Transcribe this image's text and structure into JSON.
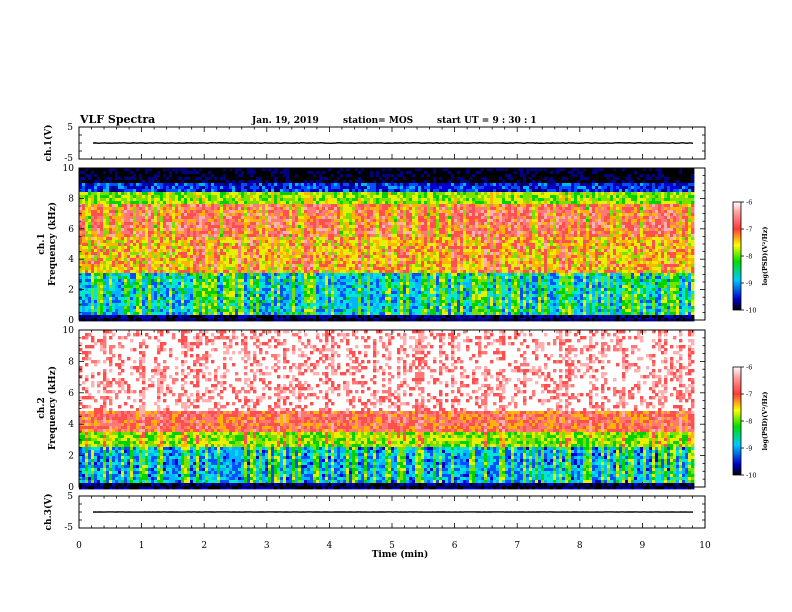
{
  "header": {
    "title": "VLF Spectra",
    "date": "Jan. 19, 2019",
    "station": "station= MOS",
    "start_time": "start  UT  =   9  : 30 : 1"
  },
  "chart_data": {
    "type": "heatmap",
    "xlabel": "Time  (min)",
    "x_ticks": [
      "0",
      "1",
      "2",
      "3",
      "4",
      "5",
      "6",
      "7",
      "8",
      "9",
      "10"
    ],
    "xlim": [
      0,
      10
    ],
    "data_end_min": 9.82,
    "panels": [
      {
        "type": "line",
        "ylabel": "ch.1(V)",
        "y_ticks": [
          "5",
          "-5"
        ],
        "ylim": [
          -5,
          5
        ],
        "trace_level": 0
      },
      {
        "type": "heatmap",
        "ylabel_line1": "ch.1",
        "ylabel_line2": "Frequency  (kHz)",
        "y_ticks": [
          "0",
          "2",
          "4",
          "6",
          "8",
          "10"
        ],
        "ylim": [
          0,
          10
        ],
        "colorbar": {
          "label": "log(PSD)(V²/Hz)",
          "ticks": [
            "-6",
            "-7",
            "-8",
            "-9",
            "-10"
          ],
          "range": [
            -10,
            -6
          ]
        }
      },
      {
        "type": "heatmap",
        "ylabel_line1": "ch.2",
        "ylabel_line2": "Frequency  (kHz)",
        "y_ticks": [
          "0",
          "2",
          "4",
          "6",
          "8",
          "10"
        ],
        "ylim": [
          0,
          10
        ],
        "colorbar": {
          "label": "log(PSD)(V²/Hz)",
          "ticks": [
            "-6",
            "-7",
            "-8",
            "-9",
            "-10"
          ],
          "range": [
            -10,
            -6
          ]
        }
      },
      {
        "type": "line",
        "ylabel": "ch.3(V)",
        "y_ticks": [
          "5",
          "-5"
        ],
        "ylim": [
          -5,
          5
        ],
        "trace_level": 0
      }
    ]
  }
}
